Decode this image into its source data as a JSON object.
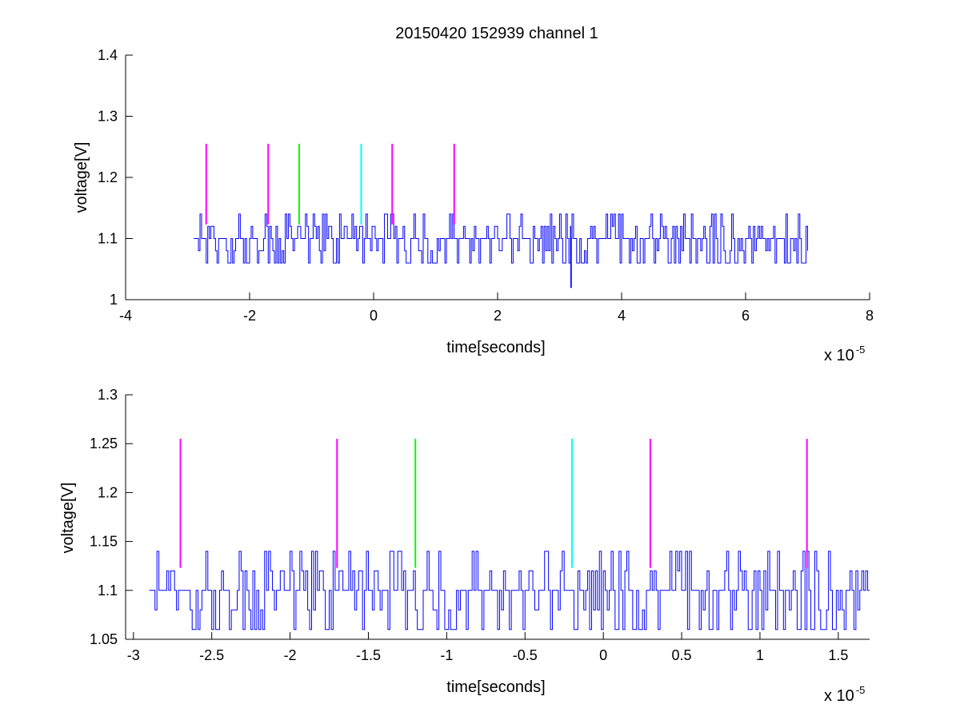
{
  "chart_data": [
    {
      "type": "line",
      "title": "20150420 152939 channel 1",
      "xlabel": "time[seconds]",
      "ylabel": "voltage[V]",
      "x_multiplier_label": "x 10",
      "x_multiplier_exponent": "-5",
      "xlim": [
        -4,
        8
      ],
      "ylim": [
        1,
        1.4
      ],
      "xticks": [
        "-4",
        "-2",
        "0",
        "2",
        "4",
        "6",
        "8"
      ],
      "yticks": [
        "1",
        "1.1",
        "1.2",
        "1.3",
        "1.4"
      ],
      "grid": false,
      "signal": {
        "color": "#0000ff",
        "x_range": [
          -2.9,
          7.0
        ],
        "baseline": 1.1,
        "levels": [
          1.06,
          1.08,
          1.1,
          1.12,
          1.14
        ],
        "min_spike": {
          "x": 3.18,
          "y": 1.02
        }
      },
      "markers": [
        {
          "x": -2.7,
          "y0": 1.123,
          "y1": 1.255,
          "color": "#ff00ff"
        },
        {
          "x": -1.7,
          "y0": 1.123,
          "y1": 1.255,
          "color": "#ff00ff"
        },
        {
          "x": -1.2,
          "y0": 1.123,
          "y1": 1.255,
          "color": "#00ff00"
        },
        {
          "x": -0.2,
          "y0": 1.123,
          "y1": 1.255,
          "color": "#00ffff"
        },
        {
          "x": 0.3,
          "y0": 1.123,
          "y1": 1.255,
          "color": "#ff00ff"
        },
        {
          "x": 1.3,
          "y0": 1.123,
          "y1": 1.255,
          "color": "#ff00ff"
        }
      ]
    },
    {
      "type": "line",
      "title": "",
      "xlabel": "time[seconds]",
      "ylabel": "voltage[V]",
      "x_multiplier_label": "x 10",
      "x_multiplier_exponent": "-5",
      "xlim": [
        -3.05,
        1.7
      ],
      "ylim": [
        1.05,
        1.3
      ],
      "xticks": [
        "-3",
        "-2.5",
        "-2",
        "-1.5",
        "-1",
        "-0.5",
        "0",
        "0.5",
        "1",
        "1.5"
      ],
      "xtick_values": [
        -3,
        -2.5,
        -2,
        -1.5,
        -1,
        -0.5,
        0,
        0.5,
        1,
        1.5
      ],
      "yticks": [
        "1.05",
        "1.1",
        "1.15",
        "1.2",
        "1.25",
        "1.3"
      ],
      "ytick_values": [
        1.05,
        1.1,
        1.15,
        1.2,
        1.25,
        1.3
      ],
      "grid": false,
      "signal": {
        "color": "#0000ff",
        "x_range": [
          -2.9,
          1.7
        ],
        "baseline": 1.1,
        "levels": [
          1.06,
          1.08,
          1.1,
          1.12,
          1.14
        ]
      },
      "markers": [
        {
          "x": -2.7,
          "y0": 1.123,
          "y1": 1.255,
          "color": "#ff00ff"
        },
        {
          "x": -1.7,
          "y0": 1.123,
          "y1": 1.255,
          "color": "#ff00ff"
        },
        {
          "x": -1.2,
          "y0": 1.123,
          "y1": 1.255,
          "color": "#00ff00"
        },
        {
          "x": -0.2,
          "y0": 1.123,
          "y1": 1.255,
          "color": "#00ffff"
        },
        {
          "x": 0.3,
          "y0": 1.123,
          "y1": 1.255,
          "color": "#ff00ff"
        },
        {
          "x": 1.3,
          "y0": 1.123,
          "y1": 1.255,
          "color": "#ff00ff"
        }
      ]
    }
  ]
}
